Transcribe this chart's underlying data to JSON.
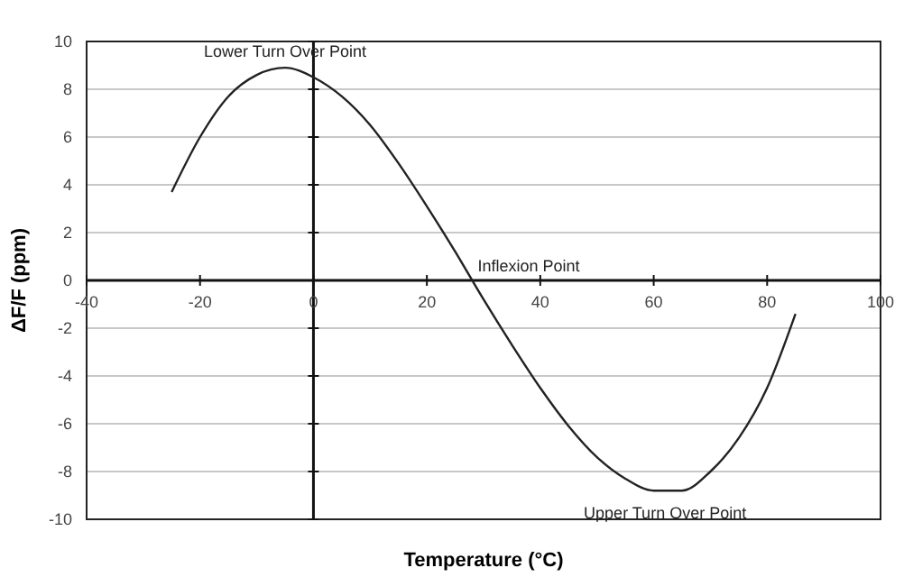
{
  "chart_data": {
    "type": "line",
    "xlabel": "Temperature (°C)",
    "ylabel": "ΔF/F (ppm)",
    "series": [
      {
        "color": "#222222",
        "x": [
          -25,
          -20,
          -15,
          -10,
          -5,
          0,
          5,
          10,
          15,
          20,
          25,
          30,
          35,
          40,
          45,
          50,
          55,
          60,
          65,
          70,
          75,
          80,
          85
        ],
        "values": [
          3.7,
          6.0,
          7.7,
          8.6,
          8.9,
          8.5,
          7.7,
          6.5,
          4.9,
          3.1,
          1.2,
          -0.8,
          -2.7,
          -4.5,
          -6.1,
          -7.4,
          -8.3,
          -8.8,
          -8.8,
          -8.0,
          -6.6,
          -4.5,
          -1.4
        ]
      }
    ],
    "xlim": [
      -40,
      100
    ],
    "xticks": [
      -40,
      -20,
      0,
      20,
      40,
      60,
      80,
      100
    ],
    "ylim": [
      -10,
      10
    ],
    "yticks": [
      -10,
      -8,
      -6,
      -4,
      -2,
      0,
      2,
      4,
      6,
      8,
      10
    ],
    "grid": "y",
    "marker": "none",
    "line_style": "solid",
    "annotations": [
      {
        "text": "Lower Turn Over Point",
        "x": -5,
        "y": 8.9
      },
      {
        "text": "Inflexion Point",
        "x": 28,
        "y": 0
      },
      {
        "text": "Upper Turn Over Point",
        "x": 62,
        "y": -8.9
      }
    ]
  }
}
